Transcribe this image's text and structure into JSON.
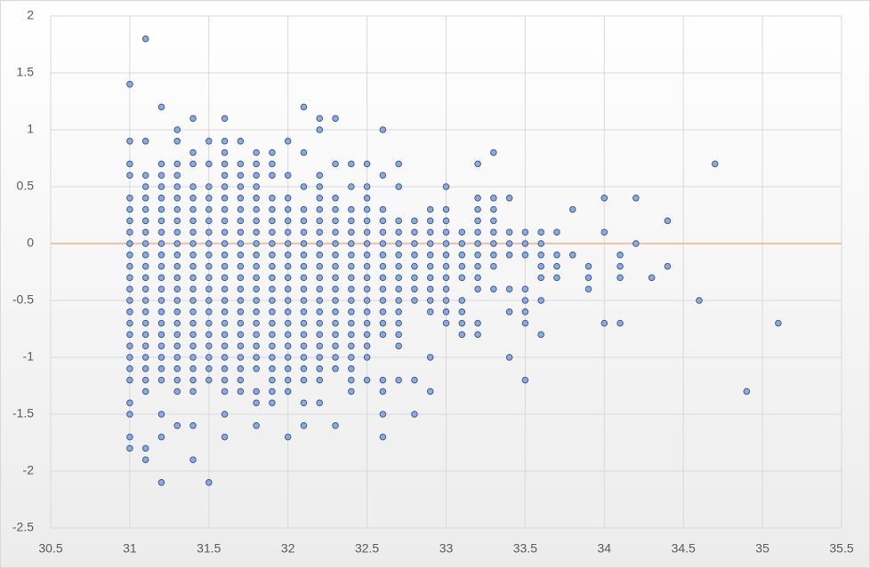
{
  "chart_data": {
    "type": "scatter",
    "xlim": [
      30.5,
      35.5
    ],
    "xticks": [
      30.5,
      31,
      31.5,
      32,
      32.5,
      33,
      33.5,
      34,
      34.5,
      35,
      35.5
    ],
    "ylim": [
      -2.5,
      2
    ],
    "yticks": [
      -2.5,
      -2,
      -1.5,
      -1,
      -0.5,
      0,
      0.5,
      1,
      1.5,
      2
    ],
    "grid": true,
    "color": "#8eaadb",
    "zero_line_color": "#f4b183",
    "columns": [
      {
        "x": 31,
        "values": [
          1.4,
          0.9,
          0.7,
          0.6,
          0.4,
          0.3,
          0.2,
          0.1,
          0,
          -0.1,
          -0.2,
          -0.3,
          -0.4,
          -0.5,
          -0.6,
          -0.7,
          -0.8,
          -0.9,
          -1,
          -1.1,
          -1.2,
          -1.4,
          -1.5,
          -1.7,
          -1.8
        ]
      },
      {
        "x": 31.1,
        "values": [
          1.8,
          0.9,
          0.6,
          0.5,
          0.4,
          0.3,
          0.2,
          0.1,
          0,
          -0.1,
          -0.2,
          -0.3,
          -0.4,
          -0.5,
          -0.6,
          -0.7,
          -0.8,
          -0.9,
          -1,
          -1.1,
          -1.2,
          -1.3,
          -1.8,
          -1.9
        ]
      },
      {
        "x": 31.2,
        "values": [
          1.2,
          0.7,
          0.6,
          0.5,
          0.4,
          0.3,
          0.2,
          0.1,
          0,
          -0.1,
          -0.2,
          -0.3,
          -0.4,
          -0.5,
          -0.6,
          -0.7,
          -0.8,
          -0.9,
          -1,
          -1.1,
          -1.2,
          -1.5,
          -1.7,
          -2.1
        ]
      },
      {
        "x": 31.3,
        "values": [
          1,
          0.9,
          0.7,
          0.6,
          0.5,
          0.4,
          0.3,
          0.2,
          0.1,
          0,
          -0.1,
          -0.2,
          -0.3,
          -0.4,
          -0.5,
          -0.6,
          -0.7,
          -0.8,
          -0.9,
          -1,
          -1.1,
          -1.2,
          -1.3,
          -1.6
        ]
      },
      {
        "x": 31.4,
        "values": [
          1.1,
          0.8,
          0.7,
          0.5,
          0.4,
          0.3,
          0.2,
          0.1,
          0,
          -0.1,
          -0.2,
          -0.3,
          -0.4,
          -0.5,
          -0.6,
          -0.7,
          -0.8,
          -0.9,
          -1,
          -1.1,
          -1.2,
          -1.3,
          -1.6,
          -1.9
        ]
      },
      {
        "x": 31.5,
        "values": [
          0.9,
          0.7,
          0.5,
          0.4,
          0.3,
          0.2,
          0.1,
          0,
          -0.1,
          -0.2,
          -0.3,
          -0.4,
          -0.5,
          -0.6,
          -0.7,
          -0.8,
          -0.9,
          -1,
          -1.1,
          -1.2,
          -2.1
        ]
      },
      {
        "x": 31.6,
        "values": [
          1.1,
          0.9,
          0.8,
          0.7,
          0.6,
          0.5,
          0.4,
          0.3,
          0.2,
          0.1,
          0,
          -0.1,
          -0.2,
          -0.3,
          -0.4,
          -0.5,
          -0.6,
          -0.7,
          -0.8,
          -0.9,
          -1,
          -1.1,
          -1.2,
          -1.3,
          -1.5,
          -1.7
        ]
      },
      {
        "x": 31.7,
        "values": [
          0.9,
          0.7,
          0.6,
          0.5,
          0.4,
          0.3,
          0.2,
          0.1,
          0,
          -0.1,
          -0.2,
          -0.3,
          -0.4,
          -0.5,
          -0.6,
          -0.7,
          -0.8,
          -0.9,
          -1,
          -1.1,
          -1.2,
          -1.3
        ]
      },
      {
        "x": 31.8,
        "values": [
          0.8,
          0.7,
          0.6,
          0.5,
          0.4,
          0.3,
          0.2,
          0.1,
          0,
          -0.1,
          -0.2,
          -0.3,
          -0.4,
          -0.5,
          -0.6,
          -0.7,
          -0.8,
          -0.9,
          -1,
          -1.1,
          -1.3,
          -1.4,
          -1.6
        ]
      },
      {
        "x": 31.9,
        "values": [
          0.8,
          0.7,
          0.6,
          0.4,
          0.3,
          0.2,
          0.1,
          0,
          -0.1,
          -0.2,
          -0.3,
          -0.4,
          -0.5,
          -0.6,
          -0.7,
          -0.8,
          -0.9,
          -1,
          -1.1,
          -1.2,
          -1.3,
          -1.4
        ]
      },
      {
        "x": 32,
        "values": [
          0.9,
          0.6,
          0.4,
          0.3,
          0.2,
          0.1,
          0,
          -0.1,
          -0.2,
          -0.3,
          -0.4,
          -0.5,
          -0.6,
          -0.7,
          -0.8,
          -0.9,
          -1,
          -1.1,
          -1.2,
          -1.3,
          -1.7
        ]
      },
      {
        "x": 32.1,
        "values": [
          1.2,
          0.8,
          0.5,
          0.3,
          0.2,
          0.1,
          0,
          -0.1,
          -0.2,
          -0.3,
          -0.4,
          -0.5,
          -0.6,
          -0.7,
          -0.8,
          -0.9,
          -1,
          -1.1,
          -1.2,
          -1.4,
          -1.6
        ]
      },
      {
        "x": 32.2,
        "values": [
          1.1,
          1,
          0.6,
          0.5,
          0.4,
          0.3,
          0.2,
          0.1,
          0,
          -0.1,
          -0.2,
          -0.3,
          -0.4,
          -0.5,
          -0.6,
          -0.7,
          -0.8,
          -0.9,
          -1,
          -1.1,
          -1.2,
          -1.4
        ]
      },
      {
        "x": 32.3,
        "values": [
          1.1,
          0.7,
          0.4,
          0.3,
          0.2,
          0.1,
          0,
          -0.1,
          -0.2,
          -0.3,
          -0.4,
          -0.5,
          -0.6,
          -0.7,
          -0.8,
          -0.9,
          -1,
          -1.1,
          -1.6
        ]
      },
      {
        "x": 32.4,
        "values": [
          0.7,
          0.5,
          0.3,
          0.2,
          0.1,
          0,
          -0.1,
          -0.2,
          -0.3,
          -0.4,
          -0.5,
          -0.6,
          -0.7,
          -0.8,
          -0.9,
          -1,
          -1.1,
          -1.2,
          -1.3
        ]
      },
      {
        "x": 32.5,
        "values": [
          0.7,
          0.5,
          0.4,
          0.3,
          0.2,
          0.1,
          0,
          -0.1,
          -0.2,
          -0.3,
          -0.4,
          -0.5,
          -0.6,
          -0.7,
          -0.8,
          -0.9,
          -1,
          -1.2
        ]
      },
      {
        "x": 32.6,
        "values": [
          1,
          0.6,
          0.3,
          0.2,
          0.1,
          0,
          -0.1,
          -0.2,
          -0.3,
          -0.4,
          -0.5,
          -0.6,
          -0.7,
          -0.8,
          -1.2,
          -1.3,
          -1.5,
          -1.7
        ]
      },
      {
        "x": 32.7,
        "values": [
          0.7,
          0.5,
          0.2,
          0.1,
          0,
          -0.1,
          -0.2,
          -0.3,
          -0.4,
          -0.5,
          -0.6,
          -0.7,
          -0.8,
          -0.9,
          -1.2
        ]
      },
      {
        "x": 32.8,
        "values": [
          0.2,
          0.1,
          0,
          -0.1,
          -0.2,
          -0.3,
          -0.4,
          -0.5,
          -1.2,
          -1.5
        ]
      },
      {
        "x": 32.9,
        "values": [
          0.3,
          0.2,
          0.1,
          0,
          -0.1,
          -0.2,
          -0.3,
          -0.4,
          -0.5,
          -0.6,
          -1,
          -1.3
        ]
      },
      {
        "x": 33,
        "values": [
          0.5,
          0.3,
          0.2,
          0.1,
          0,
          -0.1,
          -0.2,
          -0.3,
          -0.4,
          -0.5,
          -0.6,
          -0.7
        ]
      },
      {
        "x": 33.1,
        "values": [
          0.1,
          0,
          -0.1,
          -0.2,
          -0.3,
          -0.5,
          -0.6,
          -0.7,
          -0.8
        ]
      },
      {
        "x": 33.2,
        "values": [
          0.7,
          0.4,
          0.3,
          0.2,
          0.1,
          0,
          -0.1,
          -0.2,
          -0.3,
          -0.4,
          -0.7,
          -0.8
        ]
      },
      {
        "x": 33.3,
        "values": [
          0.8,
          0.4,
          0.3,
          0.2,
          0.1,
          0,
          -0.1,
          -0.2,
          -0.4
        ]
      },
      {
        "x": 33.4,
        "values": [
          0.4,
          0.1,
          0,
          -0.1,
          -0.4,
          -0.6,
          -1
        ]
      },
      {
        "x": 33.5,
        "values": [
          0.1,
          0,
          -0.1,
          -0.4,
          -0.5,
          -0.6,
          -0.7,
          -1.2
        ]
      },
      {
        "x": 33.6,
        "values": [
          0.1,
          0,
          -0.1,
          -0.2,
          -0.3,
          -0.5,
          -0.8
        ]
      },
      {
        "x": 33.7,
        "values": [
          0.1,
          -0.1,
          -0.2,
          -0.3
        ]
      },
      {
        "x": 33.8,
        "values": [
          0.3,
          -0.1
        ]
      },
      {
        "x": 33.9,
        "values": [
          -0.2,
          -0.3,
          -0.4
        ]
      },
      {
        "x": 34,
        "values": [
          0.4,
          0.1,
          -0.7
        ]
      },
      {
        "x": 34.1,
        "values": [
          -0.1,
          -0.2,
          -0.3,
          -0.7
        ]
      },
      {
        "x": 34.2,
        "values": [
          0.4,
          0
        ]
      },
      {
        "x": 34.3,
        "values": [
          -0.3
        ]
      },
      {
        "x": 34.4,
        "values": [
          0.2,
          -0.2
        ]
      },
      {
        "x": 34.6,
        "values": [
          -0.5
        ]
      },
      {
        "x": 34.7,
        "values": [
          0.7
        ]
      },
      {
        "x": 34.9,
        "values": [
          -1.3
        ]
      },
      {
        "x": 35.1,
        "values": [
          -0.7
        ]
      }
    ]
  }
}
